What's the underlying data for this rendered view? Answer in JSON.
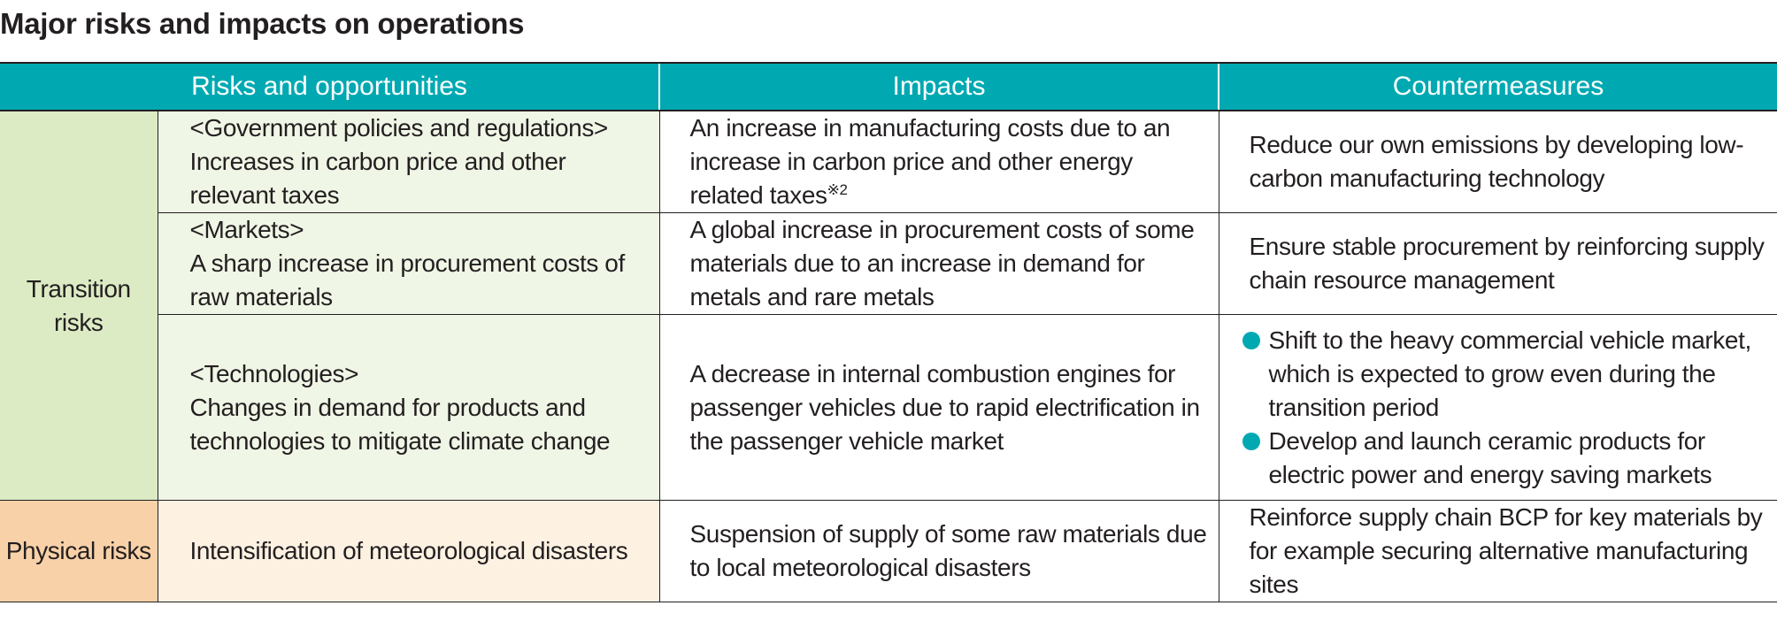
{
  "title": "Major risks and impacts on operations",
  "headers": {
    "risks": "Risks and opportunities",
    "impacts": "Impacts",
    "countermeasures": "Countermeasures"
  },
  "categories": {
    "transition": "Transition risks",
    "physical": "Physical risks"
  },
  "rows": [
    {
      "risk_heading": "<Government policies and regulations>",
      "risk_text": "Increases in carbon price and other relevant taxes",
      "impact": "An increase in manufacturing costs due to an increase in carbon price and other energy related taxes",
      "impact_note": "※2",
      "countermeasure": "Reduce our own emissions by developing low-carbon manufacturing technology"
    },
    {
      "risk_heading": "<Markets>",
      "risk_text": "A sharp increase in procurement costs of raw materials",
      "impact": "A global increase in procurement costs of some materials due to an increase in demand for metals and rare metals",
      "countermeasure": "Ensure stable procurement by reinforcing supply chain resource management"
    },
    {
      "risk_heading": "<Technologies>",
      "risk_text": "Changes in demand for products and technologies to mitigate climate change",
      "impact": "A decrease in internal combustion engines for passenger vehicles due to rapid electrification in the passenger vehicle market",
      "countermeasures": [
        "Shift to the heavy commercial vehicle market, which is expected to grow even during the transition period",
        "Develop and launch ceramic products for electric power and energy saving markets"
      ]
    },
    {
      "risk_text": "Intensification of meteorological disasters",
      "impact": "Suspension of supply of some raw materials due to local meteorological disasters",
      "countermeasure": "Reinforce supply chain BCP for key materials by for example securing alternative manufacturing sites"
    }
  ],
  "colors": {
    "header_teal": "#00a9b2",
    "transition_green": "#dcebc4",
    "transition_light": "#f0f6e6",
    "physical_orange": "#f9d1a8",
    "physical_light": "#fdf1e2"
  }
}
